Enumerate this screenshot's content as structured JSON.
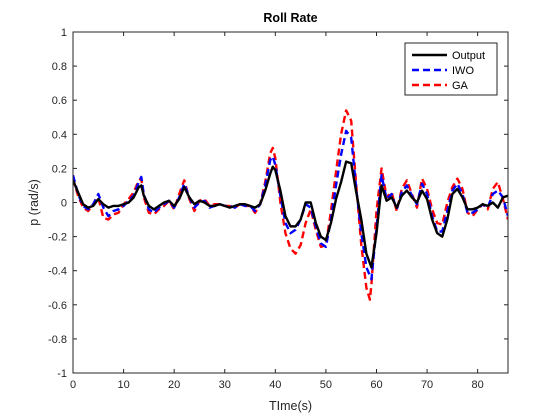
{
  "chart_data": {
    "type": "line",
    "title": "Roll Rate",
    "xlabel": "TIme(s)",
    "ylabel": "p (rad/s)",
    "xlim": [
      0,
      86
    ],
    "ylim": [
      -1,
      1
    ],
    "xticks": [
      0,
      10,
      20,
      30,
      40,
      50,
      60,
      70,
      80
    ],
    "yticks": [
      -1,
      -0.8,
      -0.6,
      -0.4,
      -0.2,
      0,
      0.2,
      0.4,
      0.6,
      0.8,
      1
    ],
    "ytick_labels": [
      "-1",
      "-0.8",
      "-0.6",
      "-0.4",
      "-0.2",
      "0",
      "0.2",
      "0.4",
      "0.6",
      "0.8",
      "1"
    ],
    "grid": false,
    "legend_position": "top-right",
    "series": [
      {
        "name": "Output",
        "color": "#000000",
        "style": "solid",
        "points": [
          [
            0,
            0.13
          ],
          [
            1,
            0.06
          ],
          [
            2,
            -0.01
          ],
          [
            3,
            -0.03
          ],
          [
            4,
            -0.02
          ],
          [
            5,
            0.02
          ],
          [
            6,
            -0.01
          ],
          [
            7,
            -0.03
          ],
          [
            8,
            -0.02
          ],
          [
            9,
            -0.02
          ],
          [
            10,
            -0.01
          ],
          [
            11,
            0.0
          ],
          [
            12,
            0.03
          ],
          [
            13,
            0.09
          ],
          [
            13.5,
            0.1
          ],
          [
            14,
            0.04
          ],
          [
            15,
            -0.02
          ],
          [
            16,
            -0.04
          ],
          [
            17,
            -0.02
          ],
          [
            18,
            0.0
          ],
          [
            19,
            0.01
          ],
          [
            20,
            -0.02
          ],
          [
            21,
            0.02
          ],
          [
            22,
            0.09
          ],
          [
            23,
            0.03
          ],
          [
            24,
            -0.01
          ],
          [
            25,
            0.01
          ],
          [
            26,
            0.0
          ],
          [
            27,
            -0.02
          ],
          [
            28,
            -0.02
          ],
          [
            29,
            -0.01
          ],
          [
            30,
            -0.02
          ],
          [
            31,
            -0.03
          ],
          [
            32,
            -0.02
          ],
          [
            33,
            -0.01
          ],
          [
            34,
            -0.01
          ],
          [
            35,
            -0.02
          ],
          [
            36,
            -0.03
          ],
          [
            37,
            -0.01
          ],
          [
            38,
            0.07
          ],
          [
            39,
            0.17
          ],
          [
            39.5,
            0.21
          ],
          [
            40,
            0.19
          ],
          [
            41,
            0.07
          ],
          [
            42,
            -0.08
          ],
          [
            43,
            -0.14
          ],
          [
            44,
            -0.14
          ],
          [
            45,
            -0.1
          ],
          [
            46,
            0.0
          ],
          [
            47,
            0.0
          ],
          [
            48,
            -0.12
          ],
          [
            49,
            -0.2
          ],
          [
            50,
            -0.22
          ],
          [
            51,
            -0.12
          ],
          [
            52,
            0.02
          ],
          [
            53,
            0.12
          ],
          [
            54,
            0.24
          ],
          [
            55,
            0.23
          ],
          [
            56,
            0.06
          ],
          [
            57,
            -0.1
          ],
          [
            58,
            -0.3
          ],
          [
            59,
            -0.38
          ],
          [
            60,
            -0.18
          ],
          [
            61,
            0.1
          ],
          [
            62,
            0.01
          ],
          [
            63,
            0.03
          ],
          [
            64,
            -0.03
          ],
          [
            65,
            0.04
          ],
          [
            66,
            0.07
          ],
          [
            67,
            0.03
          ],
          [
            68,
            0.0
          ],
          [
            69,
            0.07
          ],
          [
            70,
            0.02
          ],
          [
            71,
            -0.1
          ],
          [
            72,
            -0.18
          ],
          [
            73,
            -0.2
          ],
          [
            74,
            -0.1
          ],
          [
            75,
            0.05
          ],
          [
            76,
            0.08
          ],
          [
            77,
            0.03
          ],
          [
            78,
            -0.04
          ],
          [
            79,
            -0.04
          ],
          [
            80,
            -0.03
          ],
          [
            81,
            -0.01
          ],
          [
            82,
            -0.02
          ],
          [
            83,
            0.0
          ],
          [
            84,
            -0.03
          ],
          [
            85,
            0.03
          ],
          [
            86,
            0.04
          ]
        ]
      },
      {
        "name": "IWO",
        "color": "#0000ff",
        "style": "dashed",
        "points": [
          [
            0,
            0.16
          ],
          [
            1,
            0.05
          ],
          [
            2,
            -0.02
          ],
          [
            3,
            -0.04
          ],
          [
            4,
            -0.01
          ],
          [
            5,
            0.05
          ],
          [
            6,
            -0.03
          ],
          [
            7,
            -0.08
          ],
          [
            8,
            -0.05
          ],
          [
            9,
            -0.04
          ],
          [
            10,
            -0.02
          ],
          [
            11,
            0.01
          ],
          [
            12,
            0.04
          ],
          [
            13,
            0.12
          ],
          [
            13.5,
            0.15
          ],
          [
            14,
            0.05
          ],
          [
            15,
            -0.04
          ],
          [
            16,
            -0.06
          ],
          [
            17,
            -0.03
          ],
          [
            18,
            -0.01
          ],
          [
            19,
            0.01
          ],
          [
            20,
            -0.03
          ],
          [
            21,
            0.03
          ],
          [
            22,
            0.11
          ],
          [
            23,
            0.03
          ],
          [
            24,
            -0.03
          ],
          [
            25,
            0.0
          ],
          [
            26,
            0.01
          ],
          [
            27,
            -0.03
          ],
          [
            28,
            -0.02
          ],
          [
            29,
            -0.01
          ],
          [
            30,
            -0.02
          ],
          [
            31,
            -0.02
          ],
          [
            32,
            -0.03
          ],
          [
            33,
            -0.01
          ],
          [
            34,
            -0.02
          ],
          [
            35,
            -0.02
          ],
          [
            36,
            -0.05
          ],
          [
            37,
            -0.01
          ],
          [
            38,
            0.1
          ],
          [
            39,
            0.25
          ],
          [
            39.5,
            0.27
          ],
          [
            40,
            0.22
          ],
          [
            41,
            0.04
          ],
          [
            42,
            -0.12
          ],
          [
            43,
            -0.18
          ],
          [
            44,
            -0.16
          ],
          [
            45,
            -0.1
          ],
          [
            46,
            -0.01
          ],
          [
            47,
            -0.03
          ],
          [
            48,
            -0.14
          ],
          [
            49,
            -0.24
          ],
          [
            50,
            -0.26
          ],
          [
            51,
            -0.1
          ],
          [
            52,
            0.1
          ],
          [
            53,
            0.28
          ],
          [
            54,
            0.42
          ],
          [
            55,
            0.38
          ],
          [
            56,
            0.08
          ],
          [
            57,
            -0.18
          ],
          [
            58,
            -0.38
          ],
          [
            59,
            -0.45
          ],
          [
            60,
            -0.15
          ],
          [
            61,
            0.16
          ],
          [
            62,
            0.02
          ],
          [
            63,
            0.05
          ],
          [
            64,
            -0.04
          ],
          [
            65,
            0.06
          ],
          [
            66,
            0.1
          ],
          [
            67,
            0.04
          ],
          [
            68,
            -0.01
          ],
          [
            69,
            0.11
          ],
          [
            70,
            0.05
          ],
          [
            71,
            -0.08
          ],
          [
            72,
            -0.17
          ],
          [
            73,
            -0.17
          ],
          [
            74,
            -0.05
          ],
          [
            75,
            0.07
          ],
          [
            76,
            0.11
          ],
          [
            77,
            0.05
          ],
          [
            78,
            -0.06
          ],
          [
            79,
            -0.06
          ],
          [
            80,
            -0.04
          ],
          [
            81,
            -0.01
          ],
          [
            82,
            -0.03
          ],
          [
            83,
            0.05
          ],
          [
            84,
            0.07
          ],
          [
            85,
            0.03
          ],
          [
            86,
            -0.08
          ]
        ]
      },
      {
        "name": "GA",
        "color": "#ff0000",
        "style": "dashed",
        "points": [
          [
            0,
            0.14
          ],
          [
            1,
            0.04
          ],
          [
            2,
            -0.03
          ],
          [
            3,
            -0.05
          ],
          [
            4,
            -0.01
          ],
          [
            5,
            0.03
          ],
          [
            6,
            -0.09
          ],
          [
            7,
            -0.1
          ],
          [
            8,
            -0.07
          ],
          [
            9,
            -0.06
          ],
          [
            10,
            -0.01
          ],
          [
            11,
            0.02
          ],
          [
            12,
            0.06
          ],
          [
            13,
            0.13
          ],
          [
            13.5,
            0.14
          ],
          [
            14,
            0.03
          ],
          [
            15,
            -0.06
          ],
          [
            16,
            -0.07
          ],
          [
            17,
            -0.04
          ],
          [
            18,
            -0.02
          ],
          [
            19,
            0.01
          ],
          [
            20,
            -0.04
          ],
          [
            21,
            0.05
          ],
          [
            22,
            0.13
          ],
          [
            23,
            0.02
          ],
          [
            24,
            -0.05
          ],
          [
            25,
            0.01
          ],
          [
            26,
            0.02
          ],
          [
            27,
            -0.02
          ],
          [
            28,
            -0.01
          ],
          [
            29,
            -0.01
          ],
          [
            30,
            -0.02
          ],
          [
            31,
            -0.02
          ],
          [
            32,
            -0.03
          ],
          [
            33,
            -0.01
          ],
          [
            34,
            -0.02
          ],
          [
            35,
            -0.02
          ],
          [
            36,
            -0.06
          ],
          [
            37,
            -0.01
          ],
          [
            38,
            0.12
          ],
          [
            39,
            0.29
          ],
          [
            39.5,
            0.32
          ],
          [
            40,
            0.26
          ],
          [
            41,
            0.0
          ],
          [
            42,
            -0.18
          ],
          [
            43,
            -0.27
          ],
          [
            44,
            -0.3
          ],
          [
            45,
            -0.25
          ],
          [
            46,
            -0.12
          ],
          [
            47,
            -0.04
          ],
          [
            48,
            -0.16
          ],
          [
            49,
            -0.26
          ],
          [
            50,
            -0.25
          ],
          [
            51,
            -0.05
          ],
          [
            52,
            0.18
          ],
          [
            53,
            0.4
          ],
          [
            54,
            0.54
          ],
          [
            55,
            0.48
          ],
          [
            56,
            0.1
          ],
          [
            57,
            -0.25
          ],
          [
            58,
            -0.5
          ],
          [
            58.7,
            -0.57
          ],
          [
            59,
            -0.48
          ],
          [
            60,
            -0.05
          ],
          [
            61,
            0.2
          ],
          [
            62,
            0.03
          ],
          [
            63,
            0.06
          ],
          [
            64,
            -0.05
          ],
          [
            65,
            0.08
          ],
          [
            66,
            0.13
          ],
          [
            67,
            0.05
          ],
          [
            68,
            -0.03
          ],
          [
            69,
            0.14
          ],
          [
            70,
            0.08
          ],
          [
            71,
            -0.04
          ],
          [
            72,
            -0.12
          ],
          [
            73,
            -0.13
          ],
          [
            74,
            0.0
          ],
          [
            75,
            0.09
          ],
          [
            76,
            0.14
          ],
          [
            77,
            0.08
          ],
          [
            78,
            -0.06
          ],
          [
            79,
            -0.08
          ],
          [
            80,
            -0.04
          ],
          [
            81,
            -0.01
          ],
          [
            82,
            -0.04
          ],
          [
            83,
            0.08
          ],
          [
            84,
            0.12
          ],
          [
            85,
            0.02
          ],
          [
            86,
            -0.1
          ]
        ]
      }
    ]
  }
}
